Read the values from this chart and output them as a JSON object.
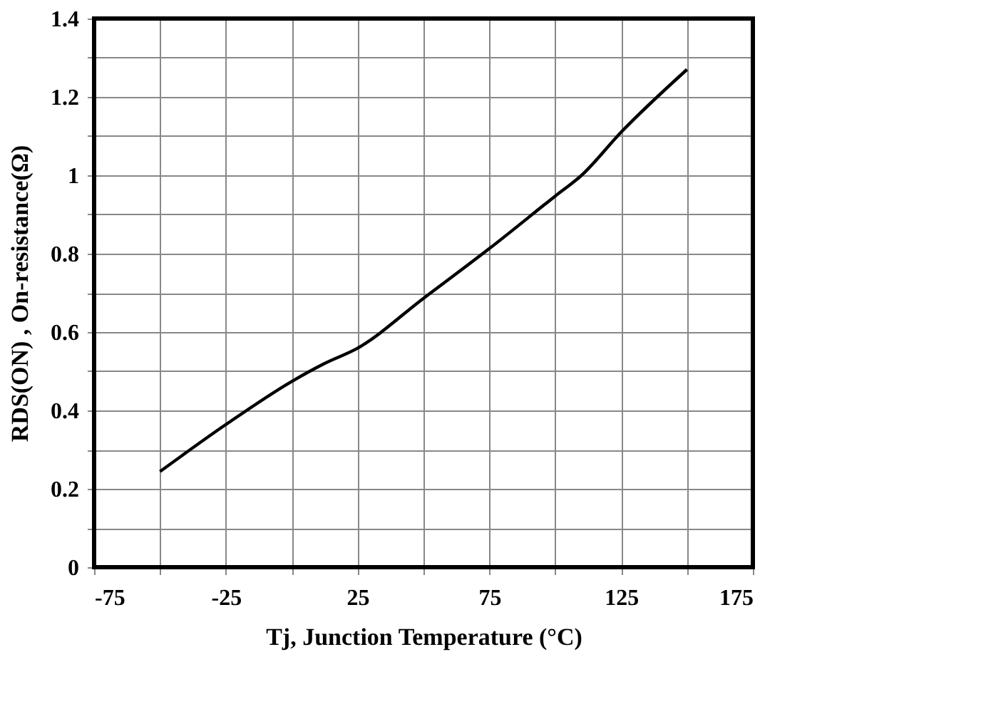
{
  "chart_data": {
    "type": "line",
    "xlabel": "Tj, Junction Temperature (°C)",
    "ylabel": "RDS(ON) , On-resistance(Ω)",
    "x": [
      -50,
      -25,
      0,
      12.5,
      25,
      50,
      75,
      100,
      110,
      125,
      150
    ],
    "series": [
      {
        "color": "#000000",
        "values": [
          0.244,
          0.364,
          0.474,
          0.52,
          0.559,
          0.686,
          0.813,
          0.947,
          1.0,
          1.11,
          1.27
        ]
      }
    ],
    "xlim": [
      -75,
      175
    ],
    "ylim": [
      0,
      1.4
    ],
    "xticks": [
      -75,
      {
        "value": -50,
        "label": null
      },
      -25,
      {
        "value": 0,
        "label": null
      },
      25,
      {
        "value": 50,
        "label": null
      },
      75,
      {
        "value": 100,
        "label": null
      },
      125,
      {
        "value": 150,
        "label": null
      },
      175
    ],
    "yticks": [
      0,
      {
        "value": 0.1,
        "label": null
      },
      0.2,
      {
        "value": 0.3,
        "label": null
      },
      0.4,
      {
        "value": 0.5,
        "label": null
      },
      0.6,
      {
        "value": 0.7,
        "label": null
      },
      0.8,
      {
        "value": 0.9,
        "label": null
      },
      1,
      {
        "value": 1.1,
        "label": null
      },
      1.2,
      {
        "value": 1.3,
        "label": null
      },
      1.4
    ],
    "grid": true,
    "marker": "none",
    "line_style": "solid",
    "legend": false
  }
}
